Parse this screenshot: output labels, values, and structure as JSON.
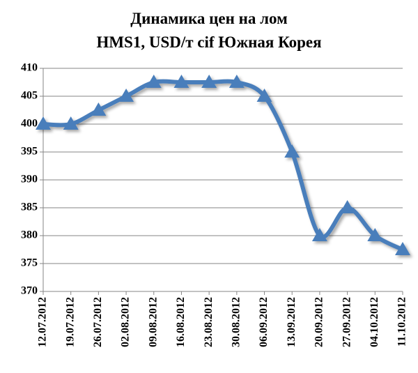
{
  "chart_data": {
    "type": "line",
    "title": [
      "Динамика цен на лом",
      "HMS1, USD/т cif  Южная Корея"
    ],
    "categories": [
      "12.07.2012",
      "19.07.2012",
      "26.07.2012",
      "02.08.2012",
      "09.08.2012",
      "16.08.2012",
      "23.08.2012",
      "30.08.2012",
      "06.09.2012",
      "13.09.2012",
      "20.09.2012",
      "27.09.2012",
      "04.10.2012",
      "11.10.2012"
    ],
    "series": [
      {
        "color": "#4a7ebb",
        "values": [
          400,
          400,
          402.5,
          405,
          407.5,
          407.5,
          407.5,
          407.5,
          405,
          395,
          380,
          385,
          380,
          377.5
        ]
      }
    ],
    "ylim": [
      370,
      410
    ],
    "yticks": [
      370,
      375,
      380,
      385,
      390,
      395,
      400,
      405,
      410
    ],
    "grid": true
  }
}
